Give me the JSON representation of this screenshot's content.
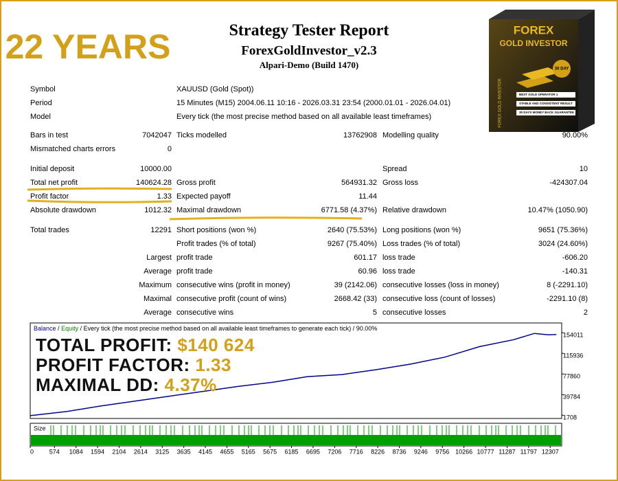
{
  "header": {
    "title": "Strategy Tester Report",
    "subtitle": "ForexGoldInvestor_v2.3",
    "build": "Alpari-Demo (Build 1470)",
    "banner": "22 YEARS"
  },
  "product": {
    "brand": "FOREX",
    "name": "GOLD INVESTOR",
    "badge": "30 DAY",
    "bullets": [
      "BEST GOLD OPERATOR 1",
      "STABLE AND CONSISTENT RESULT",
      "30 DAYS MONEY BACK GUARANTEE"
    ],
    "side": "FOREX GOLD INVESTOR"
  },
  "table": {
    "info": [
      [
        "Symbol",
        "XAUUSD (Gold (Spot))"
      ],
      [
        "Period",
        "15 Minutes (M15) 2004.06.11 10:16 - 2026.03.31 23:54 (2000.01.01 - 2026.04.01)"
      ],
      [
        "Model",
        "Every tick (the most precise method based on all available least timeframes)"
      ]
    ],
    "stats": [
      [
        "Bars in test",
        "7042047",
        "Ticks modelled",
        "13762908",
        "Modelling quality",
        "90.00%"
      ],
      [
        "Mismatched charts errors",
        "0",
        null,
        null,
        null,
        null
      ],
      [
        "Initial deposit",
        "10000.00",
        null,
        null,
        "Spread",
        "10"
      ],
      [
        "Total net profit",
        "140624.28",
        "Gross profit",
        "564931.32",
        "Gross loss",
        "-424307.04"
      ],
      [
        "Profit factor",
        "1.33",
        "Expected payoff",
        "11.44",
        null,
        null
      ],
      [
        "Absolute drawdown",
        "1012.32",
        "Maximal drawdown",
        "6771.58 (4.37%)",
        "Relative drawdown",
        "10.47% (1050.90)"
      ],
      [
        "Total trades",
        "12291",
        "Short positions (won %)",
        "2640 (75.53%)",
        "Long positions (won %)",
        "9651 (75.36%)"
      ],
      [
        null,
        null,
        "Profit trades (% of total)",
        "9267 (75.40%)",
        "Loss trades (% of total)",
        "3024 (24.60%)"
      ]
    ],
    "extremes": [
      [
        "Largest",
        "profit trade",
        "601.17",
        "loss trade",
        "-606.20"
      ],
      [
        "Average",
        "profit trade",
        "60.96",
        "loss trade",
        "-140.31"
      ],
      [
        "Maximum",
        "consecutive wins (profit in money)",
        "39 (2142.06)",
        "consecutive losses (loss in money)",
        "8 (-2291.10)"
      ],
      [
        "Maximal",
        "consecutive profit (count of wins)",
        "2668.42 (33)",
        "consecutive loss (count of losses)",
        "-2291.10 (8)"
      ],
      [
        "Average",
        "consecutive wins",
        "5",
        "consecutive losses",
        "2"
      ]
    ]
  },
  "chart_data": {
    "type": "line",
    "x": [
      0,
      863,
      1677,
      2491,
      3305,
      4119,
      4933,
      5747,
      6561,
      7375,
      8189,
      9003,
      9817,
      10631,
      11445,
      11933,
      12259,
      12454
    ],
    "series": [
      {
        "name": "Balance",
        "color": "#00008b",
        "values": [
          846,
          8570,
          18870,
          27875,
          36880,
          45890,
          54900,
          62620,
          72920,
          76780,
          85790,
          96080,
          108960,
          128260,
          141130,
          152710,
          150140,
          150624
        ]
      }
    ],
    "legend_equity": "Equity",
    "legend_separator": "/",
    "legend_note": "/ Every tick (the most precise method based on all available least timeframes to generate each tick) / 90.00%",
    "size_label": "Size",
    "xlim": [
      0,
      12580
    ],
    "ylim": [
      -4300,
      172000
    ],
    "yticks": [
      154011,
      115936,
      77860,
      39784,
      1708
    ],
    "xticks": [
      0,
      574,
      1084,
      1594,
      2104,
      2614,
      3125,
      3635,
      4145,
      4655,
      5165,
      5675,
      6185,
      6695,
      7206,
      7716,
      8226,
      8736,
      9246,
      9756,
      10266,
      10777,
      11287,
      11797,
      12307
    ],
    "annotations": [
      {
        "label": "TOTAL PROFIT:",
        "value": "$140 624"
      },
      {
        "label": "PROFIT FACTOR:",
        "value": "1.33"
      },
      {
        "label": "MAXIMAL DD:",
        "value": "4.37%"
      }
    ]
  }
}
